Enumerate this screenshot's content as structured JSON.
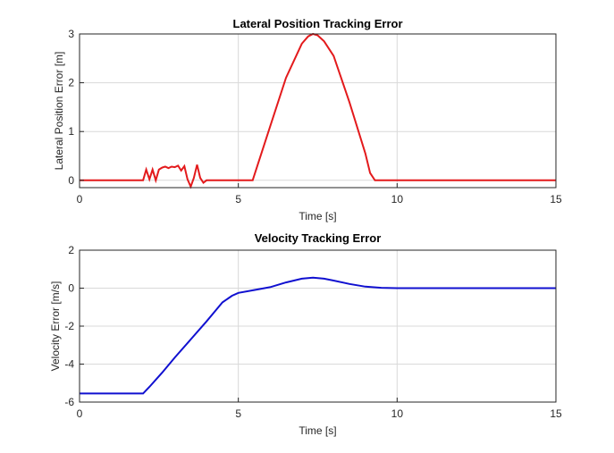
{
  "chart_data": [
    {
      "type": "line",
      "title": "Lateral Position Tracking Error",
      "xlabel": "Time [s]",
      "ylabel": "Lateral Position Error [m]",
      "xlim": [
        0,
        15
      ],
      "ylim": [
        -0.15,
        3
      ],
      "xticks": [
        0,
        5,
        10,
        15
      ],
      "yticks": [
        0,
        1,
        2,
        3
      ],
      "grid": true,
      "series": [
        {
          "color": "#e31a1c",
          "x": [
            0,
            2.0,
            2.1,
            2.2,
            2.3,
            2.4,
            2.5,
            2.6,
            2.7,
            2.8,
            2.9,
            3.0,
            3.1,
            3.2,
            3.3,
            3.4,
            3.5,
            3.6,
            3.7,
            3.8,
            3.9,
            4.0,
            4.3,
            5.3,
            5.45,
            5.6,
            6.0,
            6.5,
            7.0,
            7.2,
            7.35,
            7.5,
            7.7,
            8.0,
            8.5,
            9.0,
            9.15,
            9.3,
            9.4,
            15.0
          ],
          "y": [
            0,
            0,
            0.22,
            0.02,
            0.22,
            0.0,
            0.22,
            0.26,
            0.28,
            0.25,
            0.28,
            0.27,
            0.3,
            0.2,
            0.29,
            0.02,
            -0.13,
            0.05,
            0.32,
            0.05,
            -0.05,
            0.0,
            0.0,
            0.0,
            0.0,
            0.3,
            1.1,
            2.1,
            2.8,
            2.95,
            3.0,
            2.97,
            2.85,
            2.55,
            1.6,
            0.55,
            0.15,
            0.0,
            0.0,
            0.0
          ]
        }
      ]
    },
    {
      "type": "line",
      "title": "Velocity Tracking Error",
      "xlabel": "Time [s]",
      "ylabel": "Velocity Error [m/s]",
      "xlim": [
        0,
        15
      ],
      "ylim": [
        -6,
        2
      ],
      "xticks": [
        0,
        5,
        10,
        15
      ],
      "yticks": [
        -6,
        -4,
        -2,
        0,
        2
      ],
      "grid": true,
      "series": [
        {
          "color": "#1010d0",
          "x": [
            0,
            2.0,
            2.2,
            2.6,
            3.0,
            3.5,
            4.0,
            4.3,
            4.5,
            4.8,
            5.0,
            5.5,
            6.0,
            6.5,
            7.0,
            7.35,
            7.7,
            8.0,
            8.5,
            9.0,
            9.5,
            10.0,
            10.5,
            15.0
          ],
          "y": [
            -5.55,
            -5.55,
            -5.2,
            -4.45,
            -3.65,
            -2.7,
            -1.75,
            -1.15,
            -0.75,
            -0.4,
            -0.25,
            -0.1,
            0.05,
            0.3,
            0.5,
            0.55,
            0.5,
            0.4,
            0.22,
            0.08,
            0.02,
            0.0,
            0.0,
            0.0
          ]
        }
      ]
    }
  ]
}
